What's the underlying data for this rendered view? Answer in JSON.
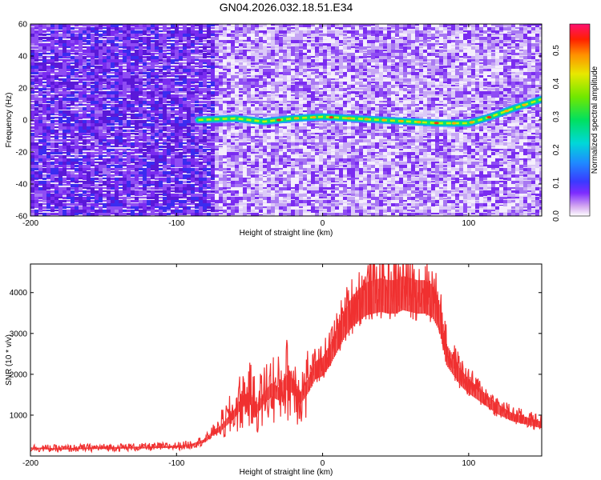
{
  "title": "GN04.2026.032.18.51.E34",
  "chart_data": [
    {
      "type": "heatmap",
      "xlabel": "Height of straight line (km)",
      "ylabel": "Frequency (Hz)",
      "xlim": [
        -200,
        150
      ],
      "ylim": [
        -60,
        60
      ],
      "xticks": [
        "-200",
        "-100",
        "0",
        "100"
      ],
      "yticks": [
        "60",
        "40",
        "20",
        "0",
        "-20",
        "-40",
        "-60"
      ],
      "colorbar": {
        "label": "Normalized spectral amplitude",
        "range": [
          0,
          0.58
        ],
        "ticks": [
          "0.0",
          "0.1",
          "0.2",
          "0.3",
          "0.4",
          "0.5"
        ]
      },
      "ridge": {
        "height_km": [
          -85,
          -60,
          -40,
          -20,
          0,
          20,
          40,
          60,
          80,
          100,
          115,
          130,
          150
        ],
        "frequency_hz": [
          0,
          1,
          -1,
          1,
          2,
          1,
          0,
          -1,
          -2,
          -2,
          2,
          7,
          13
        ]
      }
    },
    {
      "type": "line",
      "xlabel": "Height of straight line (km)",
      "ylabel": "SNR (10 * v/v)",
      "xlim": [
        -200,
        150
      ],
      "ylim": [
        0,
        4700
      ],
      "xticks": [
        "-200",
        "-100",
        "0",
        "100"
      ],
      "yticks": [
        "1000",
        "2000",
        "3000",
        "4000"
      ],
      "color": "#f03030",
      "series": [
        {
          "x": [
            -200,
            -180,
            -160,
            -140,
            -120,
            -100,
            -90,
            -80,
            -75,
            -70,
            -65,
            -60,
            -55,
            -50,
            -45,
            -40,
            -35,
            -30,
            -25,
            -20,
            -15,
            -10,
            -5,
            0,
            5,
            10,
            15,
            20,
            25,
            30,
            35,
            40,
            45,
            50,
            55,
            60,
            65,
            70,
            75,
            80,
            85,
            90,
            95,
            100,
            110,
            120,
            130,
            140,
            150
          ],
          "y": [
            200,
            180,
            200,
            210,
            220,
            240,
            280,
            400,
            600,
            700,
            900,
            1100,
            1400,
            1500,
            1200,
            1500,
            1700,
            1600,
            1900,
            1800,
            1500,
            1800,
            2200,
            2300,
            2600,
            3000,
            3400,
            3700,
            3900,
            4050,
            4100,
            4150,
            4100,
            4100,
            4200,
            4150,
            4100,
            4100,
            4000,
            3600,
            2600,
            2300,
            2000,
            1800,
            1500,
            1200,
            1000,
            900,
            800
          ]
        }
      ]
    }
  ]
}
